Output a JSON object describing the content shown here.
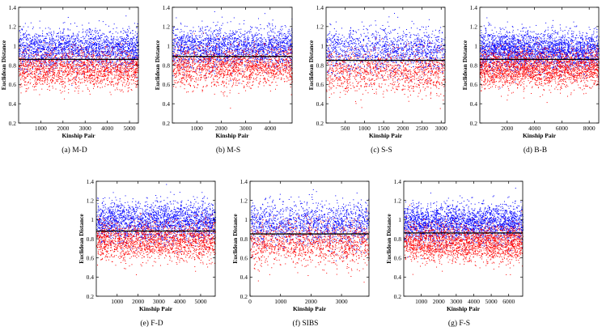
{
  "chart_data": [
    {
      "type": "scatter",
      "caption": "(a)  M-D",
      "xlabel": "Kinship Pair",
      "ylabel": "Euclidean Distance",
      "xlim": [
        0,
        5400
      ],
      "ylim": [
        0.2,
        1.4
      ],
      "xticks": [
        1000,
        2000,
        3000,
        4000,
        5000
      ],
      "yticks": [
        0.2,
        0.4,
        0.6,
        0.8,
        1,
        1.2,
        1.4
      ],
      "threshold": 0.86,
      "n_pairs": 5400,
      "series": [
        {
          "color": "#0000ff",
          "mean": 0.97,
          "spread": 0.1,
          "shown_points": 2200
        },
        {
          "color": "#ff0000",
          "mean": 0.76,
          "spread": 0.1,
          "shown_points": 1800
        }
      ]
    },
    {
      "type": "scatter",
      "caption": "(b)  M-S",
      "xlabel": "Kinship Pair",
      "ylabel": "Euclidean Distance",
      "xlim": [
        0,
        4900
      ],
      "ylim": [
        0.2,
        1.4
      ],
      "xticks": [
        1000,
        2000,
        3000,
        4000
      ],
      "yticks": [
        0.2,
        0.4,
        0.6,
        0.8,
        1,
        1.2,
        1.4
      ],
      "threshold": 0.89,
      "n_pairs": 4900,
      "series": [
        {
          "color": "#0000ff",
          "mean": 0.99,
          "spread": 0.1,
          "shown_points": 2100
        },
        {
          "color": "#ff0000",
          "mean": 0.79,
          "spread": 0.1,
          "shown_points": 1700
        }
      ]
    },
    {
      "type": "scatter",
      "caption": "(c)  S-S",
      "xlabel": "Kinship Pair",
      "ylabel": "Euclidean Distance",
      "xlim": [
        0,
        3100
      ],
      "ylim": [
        0.2,
        1.4
      ],
      "xticks": [
        500,
        1000,
        1500,
        2000,
        2500,
        3000
      ],
      "yticks": [
        0.2,
        0.4,
        0.6,
        0.8,
        1,
        1.2,
        1.4
      ],
      "threshold": 0.85,
      "n_pairs": 3100,
      "series": [
        {
          "color": "#0000ff",
          "mean": 0.96,
          "spread": 0.11,
          "shown_points": 1400
        },
        {
          "color": "#ff0000",
          "mean": 0.74,
          "spread": 0.11,
          "shown_points": 1200
        }
      ]
    },
    {
      "type": "scatter",
      "caption": "(d)  B-B",
      "xlabel": "Kinship Pair",
      "ylabel": "Euclidean Distance",
      "xlim": [
        0,
        8700
      ],
      "ylim": [
        0.2,
        1.4
      ],
      "xticks": [
        2000,
        4000,
        6000,
        8000
      ],
      "yticks": [
        0.2,
        0.4,
        0.6,
        0.8,
        1,
        1.2,
        1.4
      ],
      "threshold": 0.86,
      "n_pairs": 8700,
      "series": [
        {
          "color": "#0000ff",
          "mean": 0.96,
          "spread": 0.1,
          "shown_points": 2800
        },
        {
          "color": "#ff0000",
          "mean": 0.77,
          "spread": 0.1,
          "shown_points": 2400
        }
      ]
    },
    {
      "type": "scatter",
      "caption": "(e)  F-D",
      "xlabel": "Kinship Pair",
      "ylabel": "Euclidean Distance",
      "xlim": [
        0,
        5700
      ],
      "ylim": [
        0.2,
        1.4
      ],
      "xticks": [
        1000,
        2000,
        3000,
        4000,
        5000
      ],
      "yticks": [
        0.2,
        0.4,
        0.6,
        0.8,
        1,
        1.2,
        1.4
      ],
      "threshold": 0.88,
      "n_pairs": 5700,
      "series": [
        {
          "color": "#0000ff",
          "mean": 0.98,
          "spread": 0.1,
          "shown_points": 2300
        },
        {
          "color": "#ff0000",
          "mean": 0.78,
          "spread": 0.1,
          "shown_points": 1900
        }
      ]
    },
    {
      "type": "scatter",
      "caption": "(f)  SIBS",
      "xlabel": "Kinship Pair",
      "ylabel": "Euclidean Distance",
      "xlim": [
        0,
        3900
      ],
      "ylim": [
        0.2,
        1.4
      ],
      "xticks": [
        0,
        1000,
        2000,
        3000
      ],
      "yticks": [
        0.2,
        0.4,
        0.6,
        0.8,
        1,
        1.2,
        1.4
      ],
      "threshold": 0.85,
      "n_pairs": 3900,
      "series": [
        {
          "color": "#0000ff",
          "mean": 0.96,
          "spread": 0.11,
          "shown_points": 1500
        },
        {
          "color": "#ff0000",
          "mean": 0.75,
          "spread": 0.11,
          "shown_points": 1300
        }
      ]
    },
    {
      "type": "scatter",
      "caption": "(g)  F-S",
      "xlabel": "Kinship Pair",
      "ylabel": "Euclidean Distance",
      "xlim": [
        0,
        6800
      ],
      "ylim": [
        0.2,
        1.4
      ],
      "xticks": [
        1000,
        2000,
        3000,
        4000,
        5000,
        6000
      ],
      "yticks": [
        0.2,
        0.4,
        0.6,
        0.8,
        1,
        1.2,
        1.4
      ],
      "threshold": 0.86,
      "n_pairs": 6800,
      "series": [
        {
          "color": "#0000ff",
          "mean": 0.96,
          "spread": 0.1,
          "shown_points": 2600
        },
        {
          "color": "#ff0000",
          "mean": 0.76,
          "spread": 0.1,
          "shown_points": 2200
        }
      ]
    }
  ]
}
